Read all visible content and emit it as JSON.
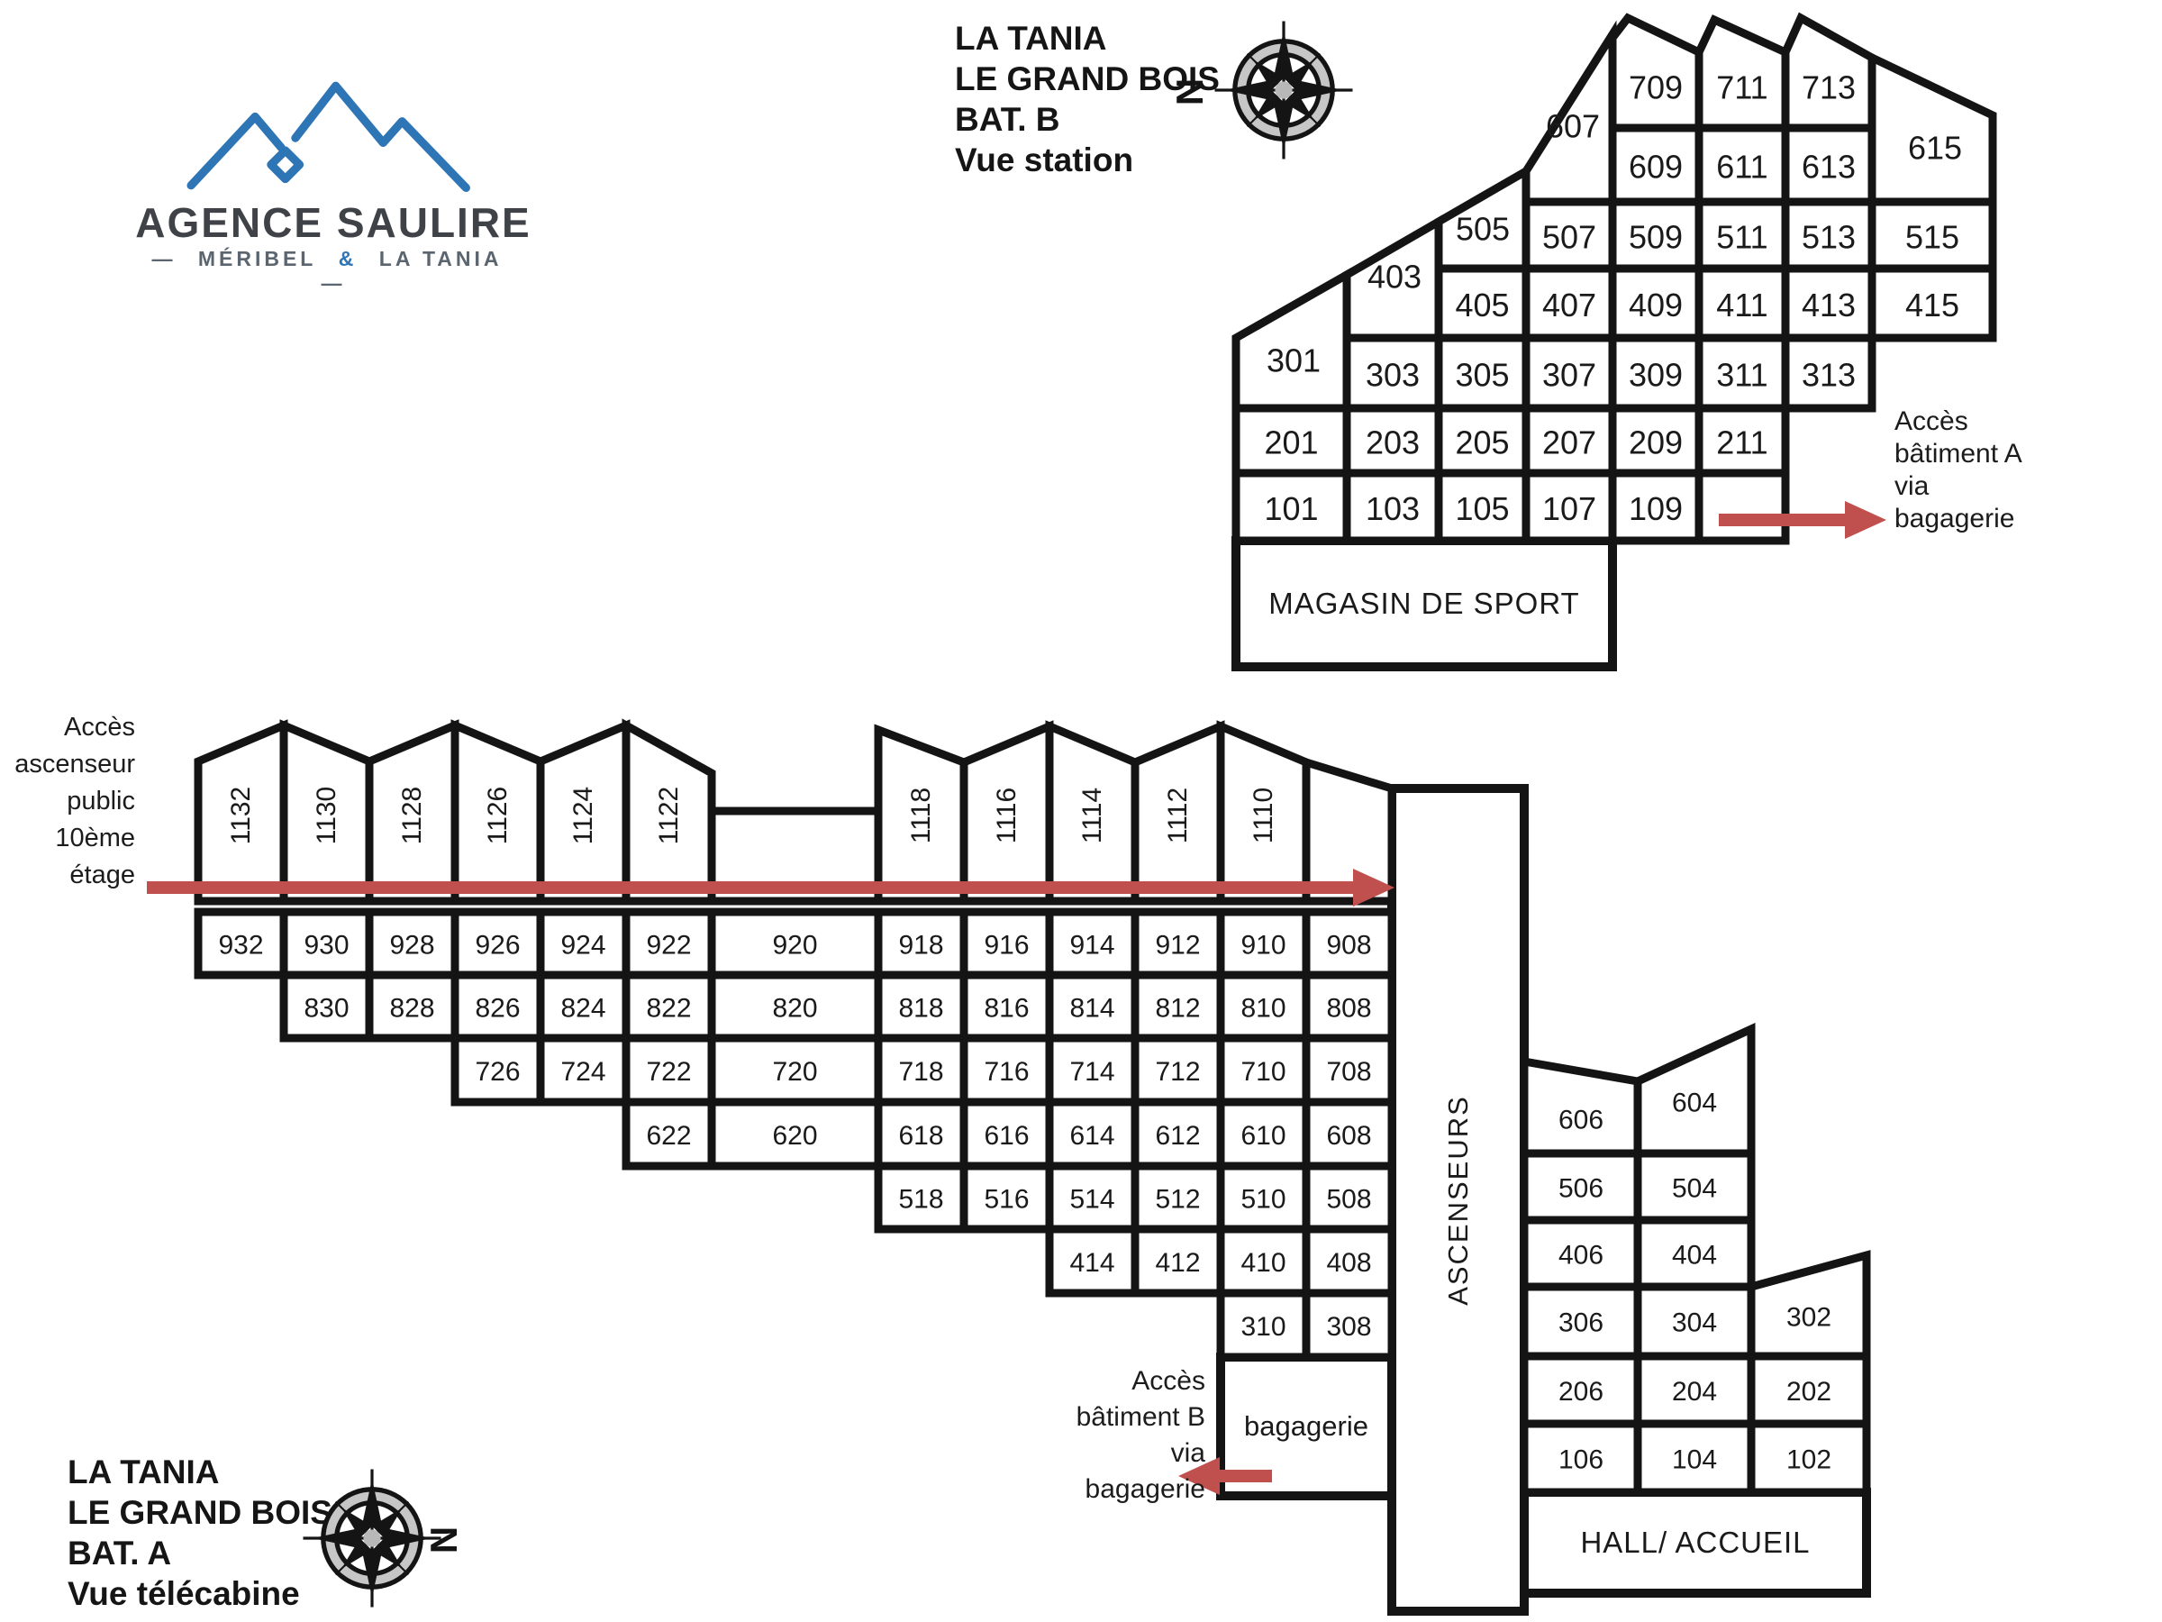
{
  "logo": {
    "title": "AGENCE SAULIRE",
    "subtitle_left": "MÉRIBEL",
    "subtitle_amp": "&",
    "subtitle_right": "LA TANIA",
    "dash": "—",
    "blue": "#2e75b6"
  },
  "compass": {
    "north_label": "N"
  },
  "palette": {
    "arrow_red": "#c0504d",
    "wall": "#141414"
  },
  "building_b": {
    "title_lines": [
      "LA TANIA",
      "LE GRAND BOIS",
      "BAT. B",
      "Vue station"
    ],
    "tall_cells": [
      "607",
      "615"
    ],
    "floor7": [
      "709",
      "711",
      "713"
    ],
    "floor6": [
      "609",
      "611",
      "613"
    ],
    "floor5": [
      "505",
      "507",
      "509",
      "511",
      "513",
      "515"
    ],
    "floor4": [
      "403",
      "405",
      "407",
      "409",
      "411",
      "413",
      "415"
    ],
    "floor3": [
      "301",
      "303",
      "305",
      "307",
      "309",
      "311",
      "313"
    ],
    "floor2": [
      "201",
      "203",
      "205",
      "207",
      "209",
      "211"
    ],
    "floor1": [
      "101",
      "103",
      "105",
      "107",
      "109",
      ""
    ],
    "shop_label": "MAGASIN DE SPORT",
    "access_note_lines": [
      "Accès",
      "bâtiment A",
      "via",
      "bagagerie"
    ]
  },
  "building_a": {
    "title_lines": [
      "LA TANIA",
      "LE GRAND BOIS",
      "BAT. A",
      "Vue télécabine"
    ],
    "roof_row": [
      "1132",
      "1130",
      "1128",
      "1126",
      "1124",
      "1122",
      "1118",
      "1116",
      "1114",
      "1112",
      "1110"
    ],
    "floor9": [
      "932",
      "930",
      "928",
      "926",
      "924",
      "922",
      "920",
      "918",
      "916",
      "914",
      "912",
      "910",
      "908"
    ],
    "floor8": [
      "830",
      "828",
      "826",
      "824",
      "822",
      "820",
      "818",
      "816",
      "814",
      "812",
      "810",
      "808"
    ],
    "floor7": [
      "726",
      "724",
      "722",
      "720",
      "718",
      "716",
      "714",
      "712",
      "710",
      "708"
    ],
    "floor6": [
      "622",
      "620",
      "618",
      "616",
      "614",
      "612",
      "610",
      "608"
    ],
    "floor5": [
      "518",
      "516",
      "514",
      "512",
      "510",
      "508"
    ],
    "floor4": [
      "414",
      "412",
      "410",
      "408"
    ],
    "floor3": [
      "310",
      "308"
    ],
    "bagagerie_label": "bagagerie",
    "ascenseurs_label": "ASCENSEURS",
    "elevator_note_lines": [
      "Accès",
      "ascenseur",
      "public",
      "10ème",
      "étage"
    ],
    "access_note_lines": [
      "Accès",
      "bâtiment B",
      "via",
      "bagagerie"
    ],
    "right_block": {
      "floor6": [
        "606",
        "604"
      ],
      "floor5": [
        "506",
        "504"
      ],
      "floor4": [
        "406",
        "404"
      ],
      "floor3": [
        "306",
        "304",
        "302"
      ],
      "floor2": [
        "206",
        "204",
        "202"
      ],
      "floor1": [
        "106",
        "104",
        "102"
      ],
      "hall_label": "HALL/ ACCUEIL"
    }
  }
}
